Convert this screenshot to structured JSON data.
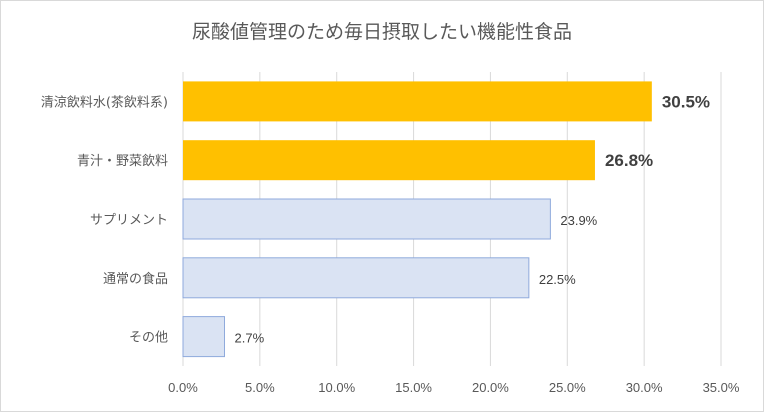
{
  "chart_data": {
    "type": "bar",
    "orientation": "horizontal",
    "title": "尿酸値管理のため毎日摂取したい機能性食品",
    "categories": [
      "清涼飲料水(茶飲料系)",
      "青汁・野菜飲料",
      "サプリメント",
      "通常の食品",
      "その他"
    ],
    "values": [
      30.5,
      26.8,
      23.9,
      22.5,
      2.7
    ],
    "value_labels": [
      "30.5%",
      "26.8%",
      "23.9%",
      "22.5%",
      "2.7%"
    ],
    "highlight": [
      true,
      true,
      false,
      false,
      false
    ],
    "xlim": [
      0,
      35
    ],
    "xticks": [
      0,
      5,
      10,
      15,
      20,
      25,
      30,
      35
    ],
    "xtick_labels": [
      "0.0%",
      "5.0%",
      "10.0%",
      "15.0%",
      "20.0%",
      "25.0%",
      "30.0%",
      "35.0%"
    ],
    "grid": true,
    "colors": {
      "highlight_fill": "#ffc000",
      "normal_fill": "#dae3f3",
      "normal_stroke": "#8faadc"
    }
  }
}
